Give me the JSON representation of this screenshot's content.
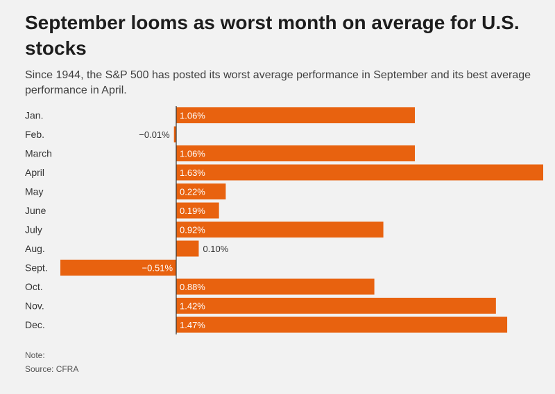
{
  "chart_data": {
    "type": "bar",
    "orientation": "horizontal",
    "title": "September looms as worst month on average for U.S. stocks",
    "subtitle": "Since 1944, the S&P 500 has posted its worst average performance in September and its best average performance in April.",
    "categories": [
      "Jan.",
      "Feb.",
      "March",
      "April",
      "May",
      "June",
      "July",
      "Aug.",
      "Sept.",
      "Oct.",
      "Nov.",
      "Dec."
    ],
    "values": [
      1.06,
      -0.01,
      1.06,
      1.63,
      0.22,
      0.19,
      0.92,
      0.1,
      -0.51,
      0.88,
      1.42,
      1.47
    ],
    "value_labels": [
      "1.06%",
      "−0.01%",
      "1.06%",
      "1.63%",
      "0.22%",
      "0.19%",
      "0.92%",
      "0.10%",
      "−0.51%",
      "0.88%",
      "1.42%",
      "1.47%"
    ],
    "xlim": [
      -0.51,
      1.63
    ],
    "grid": false,
    "bar_color": "#e8620f",
    "note": "Note:",
    "source": "Source: CFRA"
  }
}
